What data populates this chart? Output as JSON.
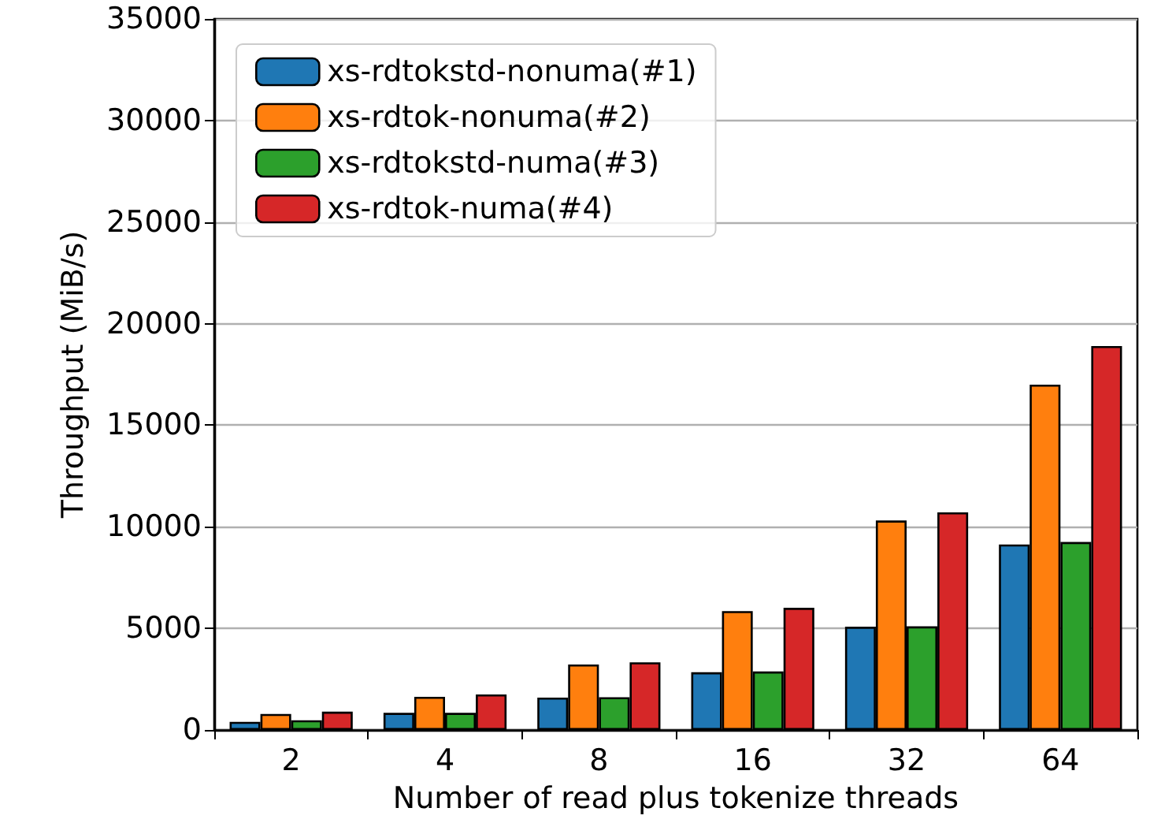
{
  "chart_data": {
    "type": "bar",
    "xlabel": "Number of read plus tokenize threads",
    "ylabel": "Throughput (MiB/s)",
    "categories": [
      "2",
      "4",
      "8",
      "16",
      "32",
      "64"
    ],
    "series": [
      {
        "name": "xs-rdtokstd-nonuma(#1)",
        "color": "#1f77b4",
        "values": [
          400,
          840,
          1590,
          2840,
          5080,
          9130
        ]
      },
      {
        "name": "xs-rdtok-nonuma(#2)",
        "color": "#ff7f0e",
        "values": [
          790,
          1630,
          3220,
          5850,
          10310,
          17000
        ]
      },
      {
        "name": "xs-rdtokstd-numa(#3)",
        "color": "#2ca02c",
        "values": [
          480,
          840,
          1610,
          2880,
          5100,
          9250
        ]
      },
      {
        "name": "xs-rdtok-numa(#4)",
        "color": "#d62728",
        "values": [
          900,
          1750,
          3330,
          6010,
          10710,
          18900
        ]
      }
    ],
    "ylim": [
      0,
      35000
    ],
    "yticks": [
      0,
      5000,
      10000,
      15000,
      20000,
      25000,
      30000,
      35000
    ],
    "grid": "y",
    "legend": "top left"
  }
}
